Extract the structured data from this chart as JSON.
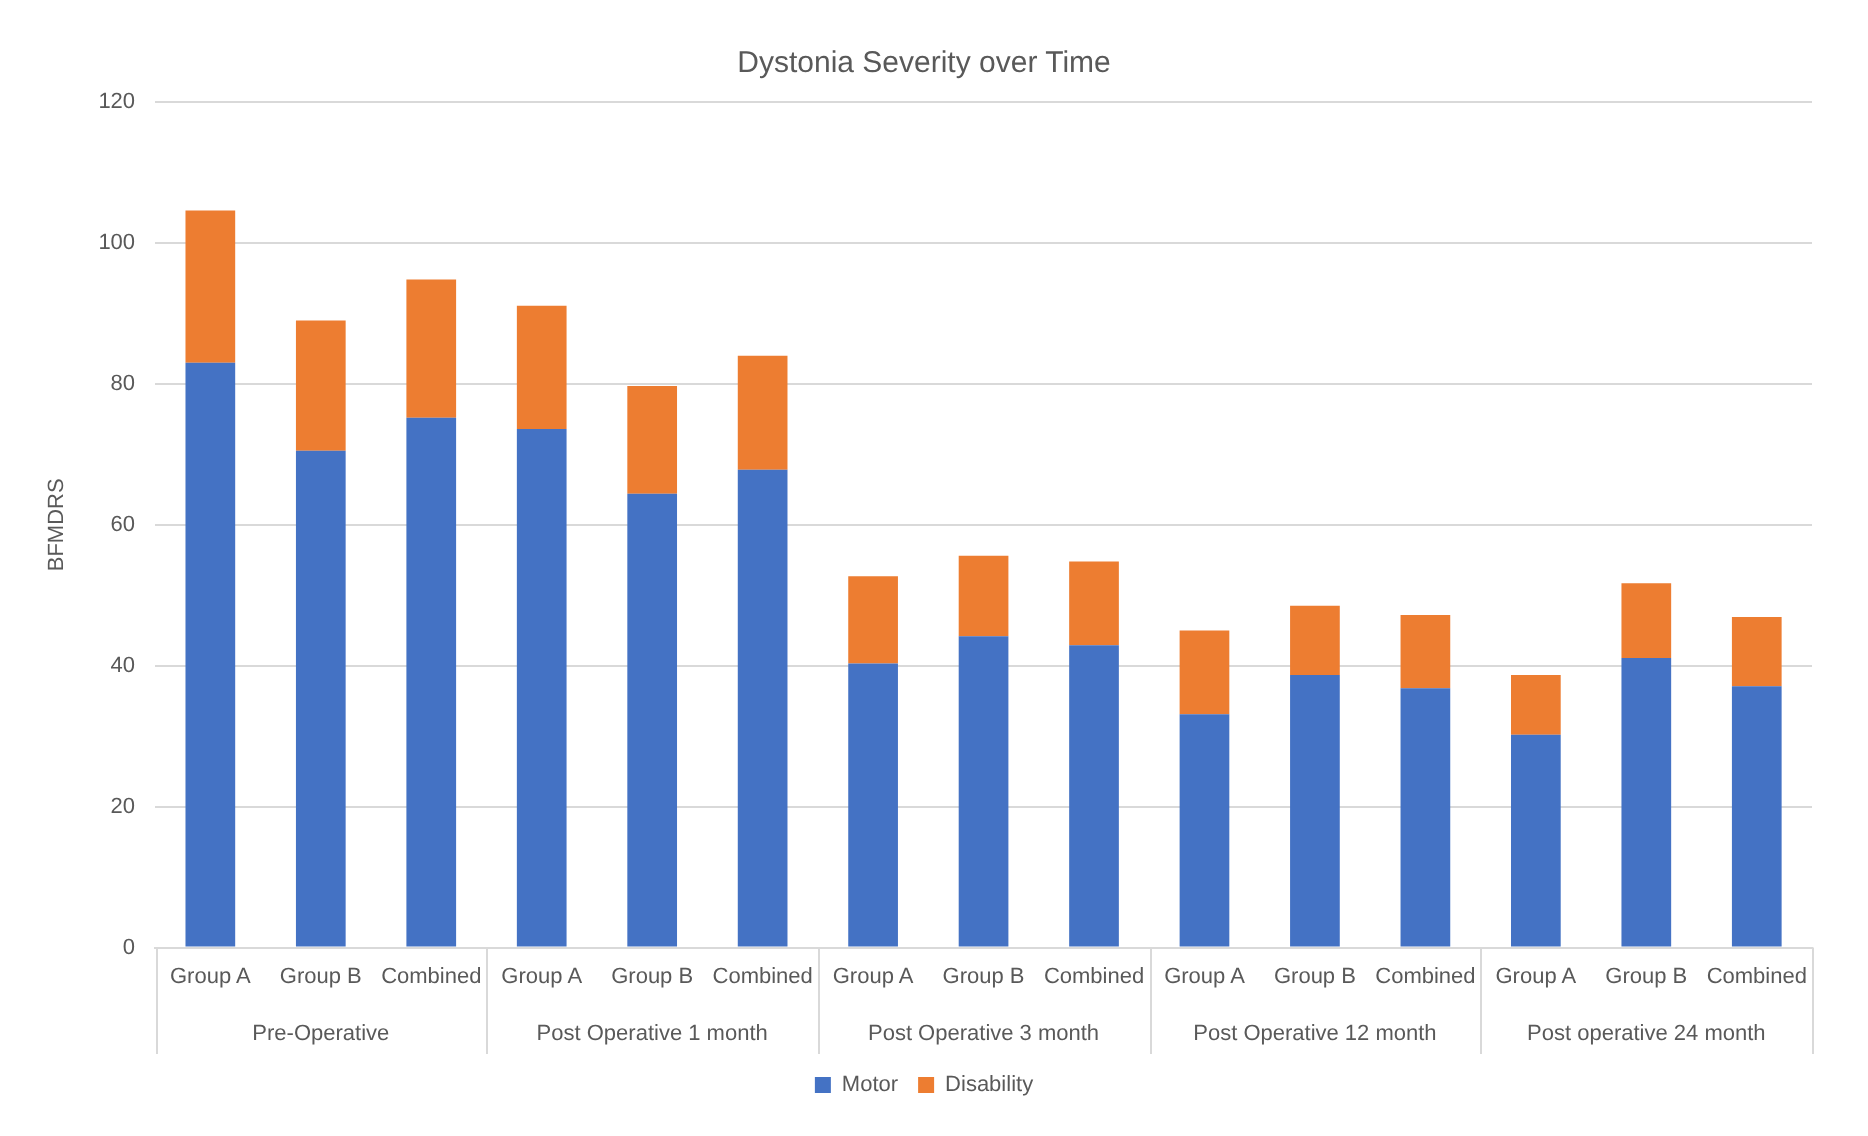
{
  "chart_data": {
    "type": "bar",
    "title": "Dystonia Severity over Time",
    "ylabel": "BFMDRS",
    "stacked": true,
    "categories": [
      "Group A",
      "Group B",
      "Combined",
      "Group A",
      "Group B",
      "Combined",
      "Group A",
      "Group B",
      "Combined",
      "Group A",
      "Group B",
      "Combined",
      "Group A",
      "Group B",
      "Combined"
    ],
    "series": [
      {
        "name": "Motor",
        "color": "#4472c4",
        "values": [
          83,
          70.5,
          75.2,
          73.6,
          64.4,
          67.8,
          40.3,
          44.2,
          42.9,
          33.1,
          38.7,
          36.8,
          30.2,
          41.1,
          37.1
        ]
      },
      {
        "name": "Disability",
        "color": "#ed7d31",
        "values": [
          21.6,
          18.5,
          19.6,
          17.5,
          15.3,
          16.2,
          12.4,
          11.4,
          11.9,
          11.9,
          9.8,
          10.4,
          8.5,
          10.6,
          9.8
        ]
      }
    ],
    "annotations": [
      "Pre-Operative",
      "Post Operative 1 month",
      "Post Operative 3 month",
      "Post Operative 12 month",
      "Post operative 24 month"
    ],
    "ylim": [
      0,
      120
    ],
    "yticks": [
      0,
      20,
      40,
      60,
      80,
      100,
      120
    ],
    "grid": "y",
    "legend": "bottom"
  }
}
